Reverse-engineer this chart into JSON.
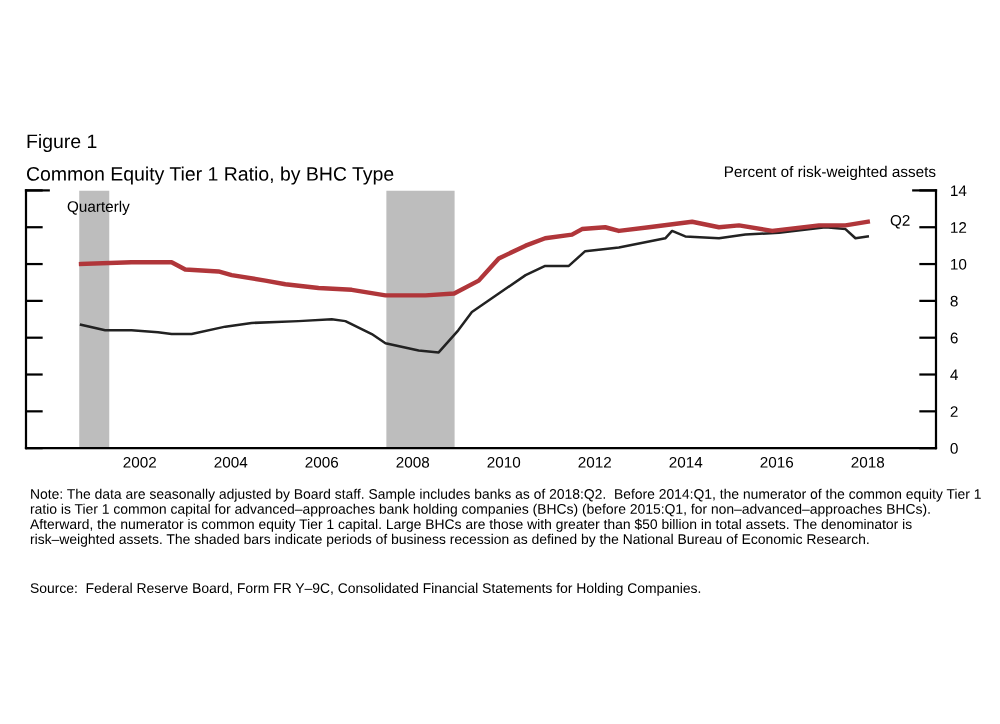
{
  "chart_data": {
    "type": "line",
    "title": "Figure 1",
    "subtitle": "Common Equity Tier 1 Ratio, by BHC Type",
    "ylabel": "Percent of risk-weighted assets",
    "annotations": [
      "Quarterly",
      {
        "text": "Q2",
        "x": 2018.5,
        "y": 12.3
      },
      "Note: The data are seasonally adjusted by Board staff. Sample includes banks as of 2018:Q2.  Before 2014:Q1, the numerator of the common equity Tier 1 ratio is Tier 1 common capital for advanced–approaches bank holding companies (BHCs) (before 2015:Q1, for non–advanced–approaches BHCs).  Afterward, the numerator is common equity Tier 1 capital. Large BHCs are those with greater than $50 billion in total assets. The denominator is risk–weighted assets. The shaded bars indicate periods of business recession as defined by the National Bureau of Economic Research.",
      "Source:  Federal Reserve Board, Form FR Y–9C, Consolidated Financial Statements for Holding Companies."
    ],
    "series": [
      {
        "color": "#b0363a",
        "x": [
          2001.21,
          2002.32,
          2003.2,
          2003.5,
          2004.23,
          2004.52,
          2005.26,
          2005.7,
          2006.43,
          2007.16,
          2007.9,
          2008.78,
          2009.41,
          2009.95,
          2010.39,
          2010.98,
          2011.41,
          2012.0,
          2012.22,
          2012.73,
          2013.03,
          2013.69,
          2014.64,
          2015.23,
          2015.67,
          2016.4,
          2017.43,
          2018.01,
          2018.5
        ],
        "values": [
          10.0,
          10.1,
          10.1,
          9.7,
          9.6,
          9.4,
          9.1,
          8.9,
          8.7,
          8.6,
          8.3,
          8.3,
          8.4,
          9.1,
          10.3,
          11.0,
          11.4,
          11.6,
          11.9,
          12.0,
          11.8,
          12.0,
          12.3,
          12.0,
          12.1,
          11.8,
          12.1,
          12.1,
          12.3
        ]
      },
      {
        "color": "#222222",
        "x": [
          2001.21,
          2001.74,
          2002.32,
          2002.9,
          2003.2,
          2003.64,
          2004.38,
          2004.96,
          2005.99,
          2006.72,
          2007.02,
          2007.6,
          2007.9,
          2008.63,
          2009.07,
          2009.5,
          2009.8,
          2010.39,
          2010.98,
          2011.41,
          2011.93,
          2012.29,
          2013.03,
          2014.05,
          2014.2,
          2014.49,
          2015.23,
          2015.81,
          2016.55,
          2017.57,
          2018.01,
          2018.23,
          2018.5
        ],
        "values": [
          6.7,
          6.4,
          6.4,
          6.3,
          6.2,
          6.2,
          6.6,
          6.8,
          6.9,
          7.0,
          6.9,
          6.2,
          5.7,
          5.3,
          5.2,
          6.4,
          7.4,
          8.4,
          9.4,
          9.9,
          9.9,
          10.7,
          10.9,
          11.4,
          11.8,
          11.5,
          11.4,
          11.6,
          11.7,
          12.0,
          11.9,
          11.4,
          11.5
        ]
      }
    ],
    "xlim": [
      2000,
      2020
    ],
    "xticks": [
      {
        "value": 2002.5,
        "label": "2002"
      },
      {
        "value": 2004.5,
        "label": "2004"
      },
      {
        "value": 2006.5,
        "label": "2006"
      },
      {
        "value": 2008.5,
        "label": "2008"
      },
      {
        "value": 2010.5,
        "label": "2010"
      },
      {
        "value": 2012.5,
        "label": "2012"
      },
      {
        "value": 2014.5,
        "label": "2014"
      },
      {
        "value": 2016.5,
        "label": "2016"
      },
      {
        "value": 2018.5,
        "label": "2018"
      }
    ],
    "ylim": [
      0,
      14
    ],
    "yticks": [
      0,
      2,
      4,
      6,
      8,
      10,
      12,
      14
    ],
    "bands": [
      {
        "axis": "x",
        "from": 2001.17,
        "to": 2001.83,
        "color": "#bdbdbd"
      },
      {
        "axis": "x",
        "from": 2007.92,
        "to": 2009.42,
        "color": "#bdbdbd"
      }
    ],
    "grid": false,
    "marker": "none",
    "line_style": "solid"
  }
}
